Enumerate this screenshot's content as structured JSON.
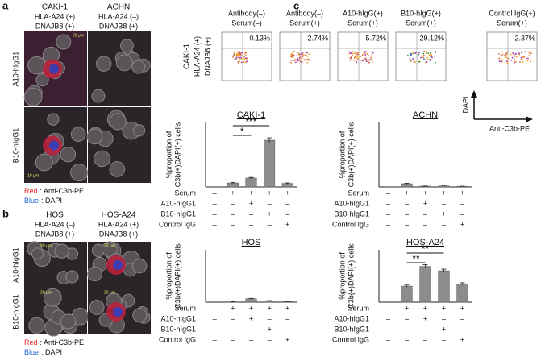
{
  "panels": {
    "a": {
      "label": "a",
      "columns": [
        {
          "cell": "CAKI-1",
          "hla": "HLA-A24 (+)",
          "dnajb8": "DNAJB8 (+)"
        },
        {
          "cell": "ACHN",
          "hla": "HLA-A24 (–)",
          "dnajb8": "DNAJB8 (+)"
        }
      ],
      "rows": [
        "A10-hIgG1",
        "B10-hIgG1"
      ],
      "scale_bars": [
        "20 μm",
        "10 μm"
      ],
      "legend": [
        {
          "color_word": "Red",
          "text": ": Anti-C3b-PE"
        },
        {
          "color_word": "Blue",
          "text": ": DAPI"
        }
      ]
    },
    "b": {
      "label": "b",
      "columns": [
        {
          "cell": "HOS",
          "hla": "HLA-A24 (–)",
          "dnajb8": "DNAJB8 (+)"
        },
        {
          "cell": "HOS-A24",
          "hla": "HLA-A24 (+)",
          "dnajb8": "DNAJB8 (+)"
        }
      ],
      "rows": [
        "A10-hIgG1",
        "B10-hIgG1"
      ],
      "scale_bars": [
        "20 μm",
        "20 μm",
        "20 μm",
        "20 μm"
      ],
      "legend": [
        {
          "color_word": "Red",
          "text": ": Anti-C3b-PE"
        },
        {
          "color_word": "Blue",
          "text": ": DAPI"
        }
      ]
    },
    "c": {
      "label": "c",
      "row_labels": [
        "CAKI-1",
        "HLA-A24 (+)",
        "DNAJB8 (+)"
      ],
      "plots": [
        {
          "title": [
            "Antibody(–)",
            "Serum(–)"
          ],
          "percent": "0.13%"
        },
        {
          "title": [
            "Antibody(–)",
            "Serum(+)"
          ],
          "percent": "2.74%"
        },
        {
          "title": [
            "A10-hIgG(+)",
            "Serum(+)"
          ],
          "percent": "5.72%"
        },
        {
          "title": [
            "B10-hIgG(+)",
            "Serum(+)"
          ],
          "percent": "29.12%"
        },
        {
          "title": [
            "Control IgG(+)",
            "Serum(+)"
          ],
          "percent": "2.37%"
        }
      ],
      "axes": {
        "y": "DAPI",
        "x": "Anti-C3b-PE"
      }
    }
  },
  "chart_data": [
    {
      "type": "bar",
      "title": "CAKI-1",
      "ylabel": [
        "%proportion of",
        "C3b(+)DAPI(+) cells"
      ],
      "categories": [
        null,
        null,
        null,
        null,
        null
      ],
      "values": [
        0,
        2.5,
        5.5,
        29,
        2.2
      ],
      "errors": [
        0,
        0.3,
        0.4,
        1.5,
        0.3
      ],
      "ylim": [
        0,
        40
      ],
      "color": "#8c8c8c",
      "conditions": [
        {
          "name": "Serum",
          "signs": [
            "–",
            "+",
            "+",
            "+",
            "+"
          ]
        },
        {
          "name": "A10-hIgG1",
          "signs": [
            "–",
            "–",
            "+",
            "–",
            "–"
          ]
        },
        {
          "name": "B10-hIgG1",
          "signs": [
            "–",
            "–",
            "–",
            "+",
            "–"
          ]
        },
        {
          "name": "Control IgG",
          "signs": [
            "–",
            "–",
            "–",
            "–",
            "+"
          ]
        }
      ],
      "significance": [
        {
          "from": 1,
          "to": 2,
          "label": "*"
        },
        {
          "from": 1,
          "to": 3,
          "label": "***"
        }
      ]
    },
    {
      "type": "bar",
      "title": "ACHN",
      "ylabel": [
        "%proportion of",
        "C3b(+)DAPI(+) cells"
      ],
      "categories": [
        null,
        null,
        null,
        null,
        null
      ],
      "values": [
        0,
        2.0,
        0.5,
        0.6,
        0.4
      ],
      "errors": [
        0,
        0.3,
        0.1,
        0.1,
        0.1
      ],
      "ylim": [
        0,
        40
      ],
      "color": "#8c8c8c",
      "conditions": [
        {
          "name": "Serum",
          "signs": [
            "–",
            "+",
            "+",
            "+",
            "+"
          ]
        },
        {
          "name": "A10-hIgG1",
          "signs": [
            "–",
            "–",
            "+",
            "–",
            "–"
          ]
        },
        {
          "name": "B10-hIgG1",
          "signs": [
            "–",
            "–",
            "–",
            "+",
            "–"
          ]
        },
        {
          "name": "Control IgG",
          "signs": [
            "–",
            "–",
            "–",
            "–",
            "+"
          ]
        }
      ],
      "significance": []
    },
    {
      "type": "bar",
      "title": "HOS",
      "ylabel": [
        "%proportion of",
        "C3b(+)DAPI(+) cells"
      ],
      "categories": [
        null,
        null,
        null,
        null,
        null
      ],
      "values": [
        0,
        0.2,
        2.0,
        0.8,
        0.3
      ],
      "errors": [
        0,
        0.05,
        0.2,
        0.1,
        0.05
      ],
      "ylim": [
        0,
        30
      ],
      "color": "#8c8c8c",
      "conditions": [
        {
          "name": "Serum",
          "signs": [
            "–",
            "+",
            "+",
            "+",
            "+"
          ]
        },
        {
          "name": "A10-hIgG1",
          "signs": [
            "–",
            "–",
            "+",
            "–",
            "–"
          ]
        },
        {
          "name": "B10-hIgG1",
          "signs": [
            "–",
            "–",
            "–",
            "+",
            "–"
          ]
        },
        {
          "name": "Control IgG",
          "signs": [
            "–",
            "–",
            "–",
            "–",
            "+"
          ]
        }
      ],
      "significance": []
    },
    {
      "type": "bar",
      "title": "HOS-A24",
      "ylabel": [
        "%proportion of",
        "C3b(+)DAPI(+) cells"
      ],
      "categories": [
        null,
        null,
        null,
        null,
        null
      ],
      "values": [
        0,
        9.2,
        20.5,
        18,
        10.5
      ],
      "errors": [
        0,
        0.6,
        1.0,
        0.9,
        0.6
      ],
      "ylim": [
        0,
        30
      ],
      "color": "#8c8c8c",
      "conditions": [
        {
          "name": "Serum",
          "signs": [
            "–",
            "+",
            "+",
            "+",
            "+"
          ]
        },
        {
          "name": "A10-hIgG1",
          "signs": [
            "–",
            "–",
            "+",
            "–",
            "–"
          ]
        },
        {
          "name": "B10-hIgG1",
          "signs": [
            "–",
            "–",
            "–",
            "+",
            "–"
          ]
        },
        {
          "name": "Control IgG",
          "signs": [
            "–",
            "–",
            "–",
            "–",
            "+"
          ]
        }
      ],
      "significance": [
        {
          "from": 1,
          "to": 2,
          "label": "**"
        },
        {
          "from": 1,
          "to": 3,
          "label": "**"
        }
      ]
    }
  ]
}
